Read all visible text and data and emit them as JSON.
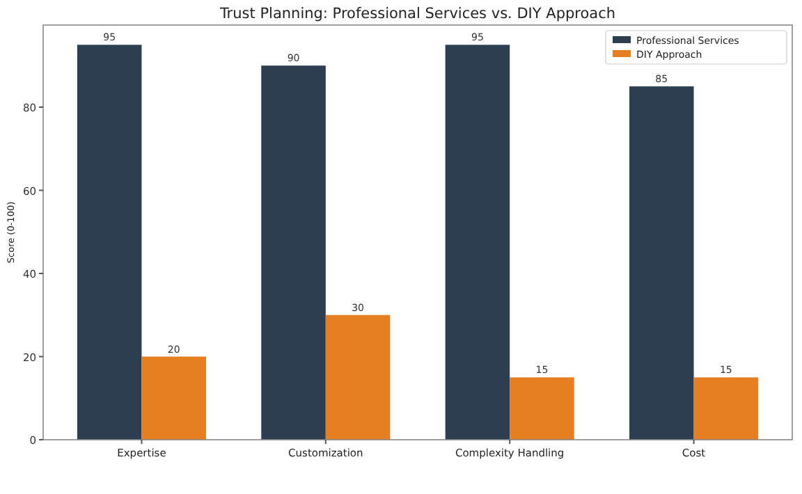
{
  "chart_data": {
    "type": "bar",
    "title": "Trust Planning: Professional Services vs. DIY Approach",
    "ylabel": "Score (0-100)",
    "categories": [
      "Expertise",
      "Customization",
      "Complexity Handling",
      "Cost"
    ],
    "series": [
      {
        "name": "Professional Services",
        "color": "#2c3e50",
        "values": [
          95,
          90,
          95,
          85
        ]
      },
      {
        "name": "DIY Approach",
        "color": "#e67e22",
        "values": [
          20,
          30,
          15,
          15
        ]
      }
    ],
    "ylim": [
      0,
      99.75
    ],
    "yticks": [
      0,
      20,
      40,
      60,
      80
    ],
    "data_labels": true,
    "legend": "top right",
    "grid": false
  }
}
